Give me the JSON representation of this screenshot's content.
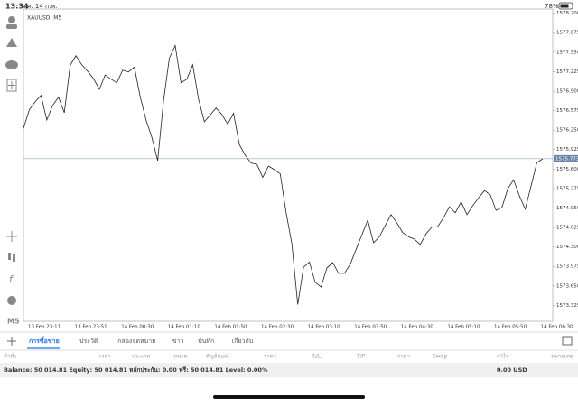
{
  "status_bar": {
    "time": "13:34",
    "date": "ศ. 14 ก.พ.",
    "battery": "78%"
  },
  "toolbar": {
    "timeframe": "M5"
  },
  "chart_data": {
    "type": "line",
    "title": "XAUUSD, M5",
    "color": "#222222",
    "x_labels": [
      "13 Feb 23:11",
      "13 Feb 23:51",
      "14 Feb 00:30",
      "14 Feb 01:10",
      "14 Feb 01:50",
      "14 Feb 02:30",
      "14 Feb 03:10",
      "14 Feb 03:50",
      "14 Feb 04:30",
      "14 Feb 05:10",
      "14 Feb 05:50",
      "14 Feb 06:30"
    ],
    "values": [
      1576.28,
      1576.59,
      1576.72,
      1576.83,
      1576.42,
      1576.66,
      1576.8,
      1576.54,
      1577.33,
      1577.49,
      1577.34,
      1577.23,
      1577.11,
      1576.93,
      1577.17,
      1577.1,
      1577.04,
      1577.25,
      1577.22,
      1577.3,
      1576.81,
      1576.42,
      1576.13,
      1575.74,
      1576.74,
      1577.45,
      1577.66,
      1577.04,
      1577.1,
      1577.34,
      1576.77,
      1576.39,
      1576.5,
      1576.62,
      1576.51,
      1576.35,
      1576.53,
      1576.01,
      1575.83,
      1575.7,
      1575.68,
      1575.46,
      1575.65,
      1575.59,
      1575.52,
      1574.88,
      1574.35,
      1573.34,
      1573.96,
      1574.05,
      1573.71,
      1573.63,
      1573.95,
      1574.04,
      1573.86,
      1573.86,
      1574.01,
      1574.26,
      1574.5,
      1574.75,
      1574.37,
      1574.47,
      1574.66,
      1574.84,
      1574.7,
      1574.54,
      1574.47,
      1574.43,
      1574.34,
      1574.52,
      1574.63,
      1574.64,
      1574.79,
      1574.97,
      1574.87,
      1575.05,
      1574.84,
      1574.99,
      1575.12,
      1575.24,
      1575.17,
      1574.91,
      1574.96,
      1575.27,
      1575.42,
      1575.15,
      1574.93,
      1575.32,
      1575.71,
      1575.77
    ],
    "ylim": [
      1573.06,
      1578.27
    ],
    "yticks": [
      {
        "value": 1578.2,
        "label": "1578.200"
      },
      {
        "value": 1577.875,
        "label": "1577.875"
      },
      {
        "value": 1577.55,
        "label": "1577.550"
      },
      {
        "value": 1577.225,
        "label": "1577.225"
      },
      {
        "value": 1576.9,
        "label": "1576.900"
      },
      {
        "value": 1576.575,
        "label": "1576.575"
      },
      {
        "value": 1576.25,
        "label": "1576.250"
      },
      {
        "value": 1575.925,
        "label": "1575.925"
      },
      {
        "value": 1575.6,
        "label": "1575.600"
      },
      {
        "value": 1575.275,
        "label": "1575.275"
      },
      {
        "value": 1574.95,
        "label": "1574.950"
      },
      {
        "value": 1574.625,
        "label": "1574.625"
      },
      {
        "value": 1574.3,
        "label": "1574.300"
      },
      {
        "value": 1573.975,
        "label": "1573.975"
      },
      {
        "value": 1573.65,
        "label": "1573.650"
      },
      {
        "value": 1573.325,
        "label": "1573.325"
      }
    ],
    "current_price": 1575.773,
    "current_price_label": "1575.773"
  },
  "tabs": [
    "การซื้อขาย",
    "ประวัติ",
    "กล่องจดหมาย",
    "ข่าว",
    "บันทึก",
    "เกี่ยวกับ"
  ],
  "columns": [
    "คำสั่ง",
    "เวลา",
    "ประเภท",
    "ขนาด",
    "สัญลักษณ์",
    "ราคา",
    "S/L",
    "T/P",
    "ราคา",
    "Swap",
    "กำไร",
    "หมายเหตุ"
  ],
  "summary": {
    "text": "Balance: 50 014.81 Equity: 50 014.81 หลักประกัน: 0.00 ฟรี: 50 014.81 Level: 0.00%",
    "total": "0.00 USD"
  }
}
